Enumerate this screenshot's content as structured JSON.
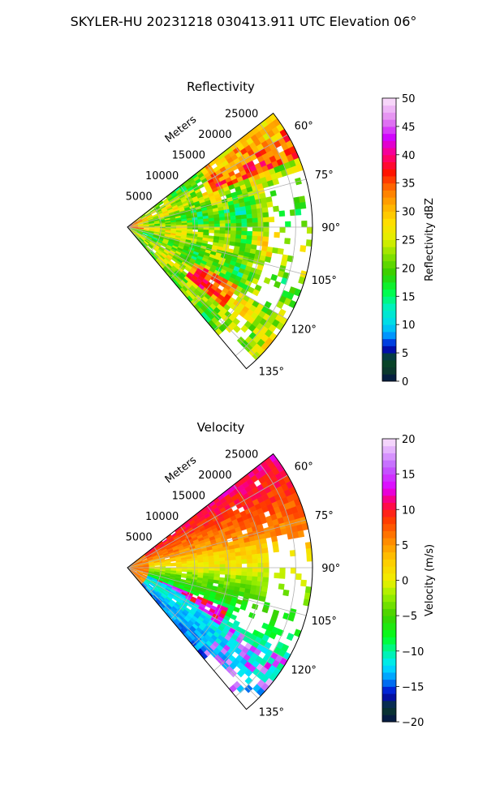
{
  "figure": {
    "title": "SKYLER-HU  20231218  030413.911 UTC Elevation 06°"
  },
  "chart_data": [
    {
      "type": "heatmap",
      "projection": "polar-sector",
      "title": "Reflectivity",
      "range_label": "Meters",
      "range_ticks": [
        5000,
        10000,
        15000,
        20000,
        25000
      ],
      "range_tick_labels": [
        "5000",
        "10000",
        "15000",
        "20000",
        "25000"
      ],
      "range_max": 27500,
      "azimuth_ticks": [
        60,
        75,
        90,
        105,
        120,
        135
      ],
      "azimuth_tick_labels": [
        "60°",
        "75°",
        "90°",
        "105°",
        "120°",
        "135°"
      ],
      "azimuth_range": [
        52,
        140
      ],
      "grid": true,
      "colorbar": {
        "label": "Reflectivity dBZ",
        "min": 0,
        "max": 50,
        "ticks": [
          0,
          5,
          10,
          15,
          20,
          25,
          30,
          35,
          40,
          45,
          50
        ],
        "tick_labels": [
          "0",
          "5",
          "10",
          "15",
          "20",
          "25",
          "30",
          "35",
          "40",
          "45",
          "50"
        ],
        "stops": [
          {
            "v": 0,
            "c": "#04124a"
          },
          {
            "v": 2,
            "c": "#0b3b2b"
          },
          {
            "v": 4,
            "c": "#064a24"
          },
          {
            "v": 6,
            "c": "#0000c8"
          },
          {
            "v": 8,
            "c": "#0090ff"
          },
          {
            "v": 10,
            "c": "#00d8f0"
          },
          {
            "v": 13,
            "c": "#00f0c0"
          },
          {
            "v": 16,
            "c": "#00ff40"
          },
          {
            "v": 19,
            "c": "#33cc00"
          },
          {
            "v": 22,
            "c": "#80e000"
          },
          {
            "v": 25,
            "c": "#e0f000"
          },
          {
            "v": 28,
            "c": "#ffe000"
          },
          {
            "v": 31,
            "c": "#ffb000"
          },
          {
            "v": 34,
            "c": "#ff7000"
          },
          {
            "v": 37,
            "c": "#ff1000"
          },
          {
            "v": 40,
            "c": "#ff0080"
          },
          {
            "v": 43,
            "c": "#d000ff"
          },
          {
            "v": 46,
            "c": "#e080f0"
          },
          {
            "v": 50,
            "c": "#fbe6fb"
          }
        ]
      },
      "field_description": "Mostly 20–30 dBZ (green/yellow) across sector; 35–40 dBZ cores near origin, along 55–65° at 15–25 km and around 120–130° at 12–18 km; gaps (no echo) near 75–105° beyond 20 km"
    },
    {
      "type": "heatmap",
      "projection": "polar-sector",
      "title": "Velocity",
      "range_label": "Meters",
      "range_ticks": [
        5000,
        10000,
        15000,
        20000,
        25000
      ],
      "range_tick_labels": [
        "5000",
        "10000",
        "15000",
        "20000",
        "25000"
      ],
      "range_max": 27500,
      "azimuth_ticks": [
        60,
        75,
        90,
        105,
        120,
        135
      ],
      "azimuth_tick_labels": [
        "60°",
        "75°",
        "90°",
        "105°",
        "120°",
        "135°"
      ],
      "azimuth_range": [
        52,
        140
      ],
      "grid": true,
      "colorbar": {
        "label": "Velocity (m/s)",
        "min": -20,
        "max": 20,
        "ticks": [
          -20,
          -15,
          -10,
          -5,
          0,
          5,
          10,
          15,
          20
        ],
        "tick_labels": [
          "−20",
          "−15",
          "−10",
          "−5",
          "0",
          "5",
          "10",
          "15",
          "20"
        ],
        "stops": [
          {
            "v": -20,
            "c": "#04124a"
          },
          {
            "v": -18,
            "c": "#0b3b2b"
          },
          {
            "v": -16,
            "c": "#0000c8"
          },
          {
            "v": -14,
            "c": "#0090ff"
          },
          {
            "v": -12,
            "c": "#00e8ff"
          },
          {
            "v": -10,
            "c": "#00f5a0"
          },
          {
            "v": -8,
            "c": "#00ff20"
          },
          {
            "v": -5,
            "c": "#40d000"
          },
          {
            "v": -2,
            "c": "#a0f000"
          },
          {
            "v": 0,
            "c": "#f0f000"
          },
          {
            "v": 3,
            "c": "#ffc800"
          },
          {
            "v": 6,
            "c": "#ff8000"
          },
          {
            "v": 9,
            "c": "#ff3000"
          },
          {
            "v": 11,
            "c": "#ff0060"
          },
          {
            "v": 13,
            "c": "#e000ff"
          },
          {
            "v": 16,
            "c": "#c060ff"
          },
          {
            "v": 20,
            "c": "#fbe6fb"
          }
        ]
      },
      "field_description": "Outbound 5–10 m/s (orange/red) along northern half 52–80°; near-zero (yellow) around 85–95°; inbound −5 to −10 m/s (green) 100–125°; −12 m/s (cyan) band near 115–130° with folded/aliased magenta pixels at far range 120–135°"
    }
  ]
}
